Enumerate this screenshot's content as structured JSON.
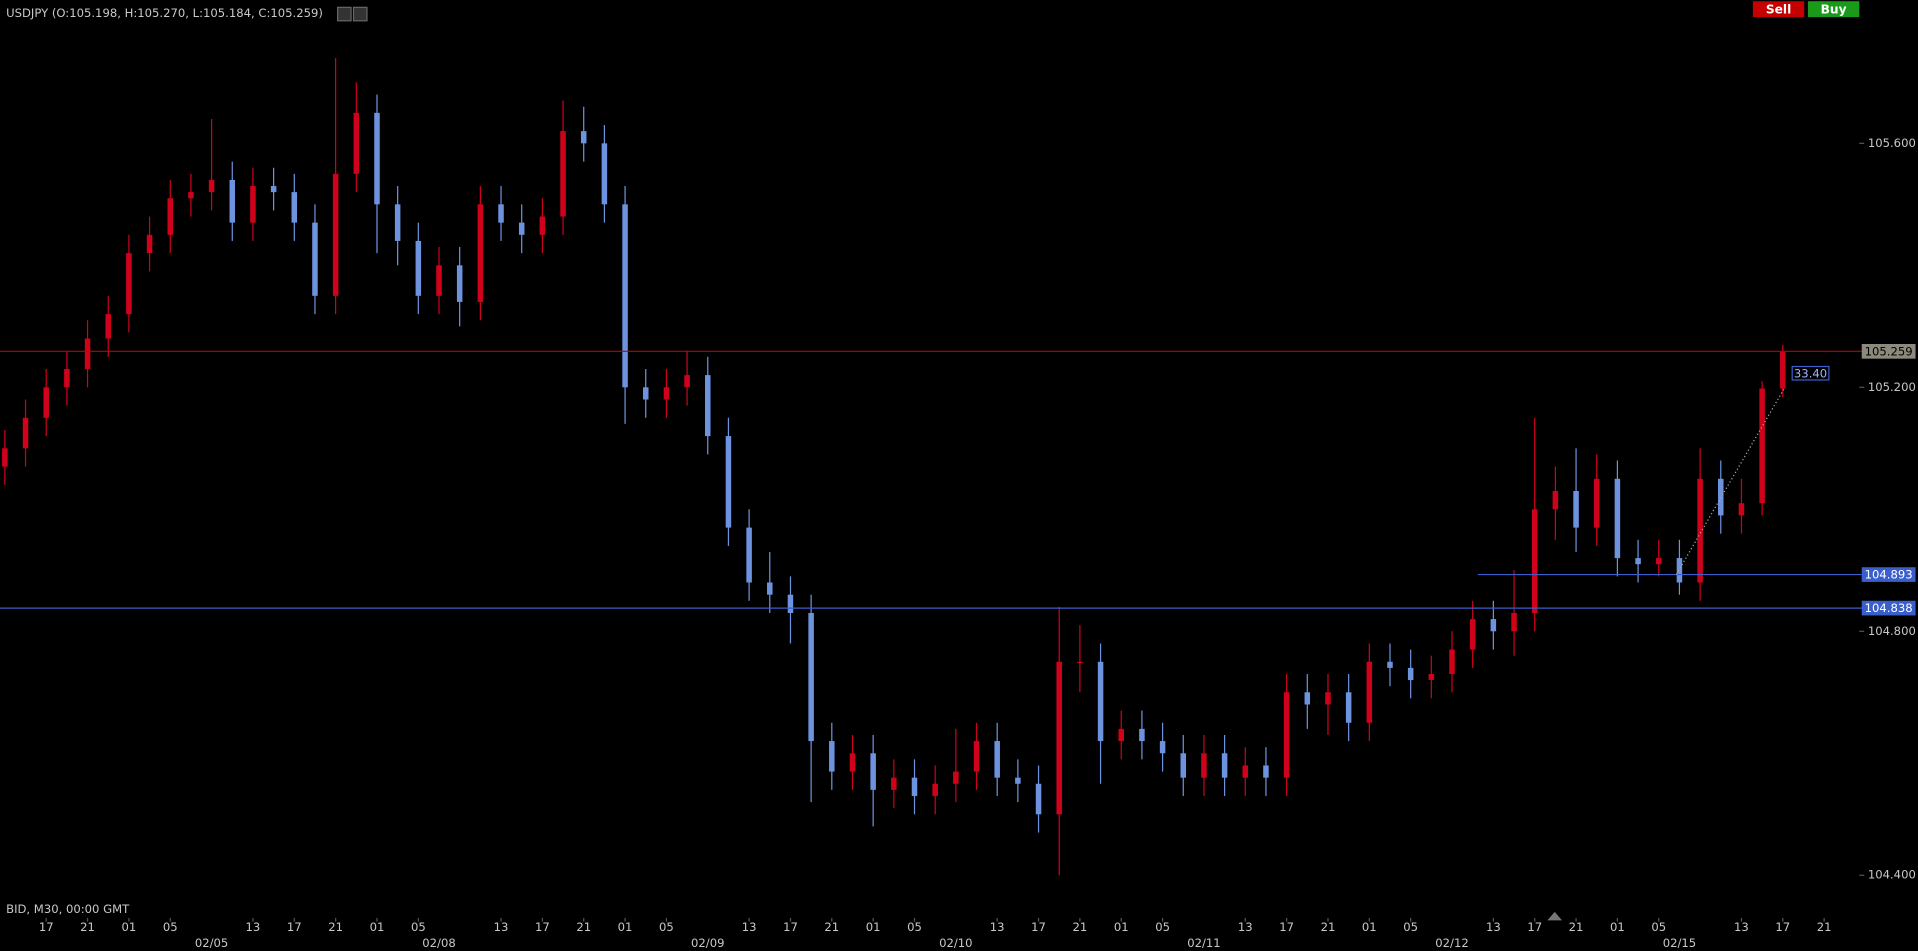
{
  "chart_data": {
    "type": "candlestick",
    "header": "USDJPY (O:105.198, H:105.270, L:105.184, C:105.259)",
    "footer_note": "BID, M30, 00:00 GMT",
    "buttons": [
      {
        "label": "Sell",
        "color": "#c40000"
      },
      {
        "label": "Buy",
        "color": "#1a9a1a"
      }
    ],
    "up_color": "#d0021b",
    "down_color": "#6d93df",
    "xlim": [
      -0.47,
      179.4
    ],
    "ylim": [
      104.33,
      105.835
    ],
    "yticks": [
      {
        "value": 104.4,
        "label": "104.400"
      },
      {
        "value": 104.8,
        "label": "104.800"
      },
      {
        "value": 105.2,
        "label": "105.200"
      },
      {
        "value": 105.6,
        "label": "105.600"
      }
    ],
    "xticks": [
      {
        "value": 4,
        "label": "17"
      },
      {
        "value": 8,
        "label": "21"
      },
      {
        "value": 12,
        "label": "01"
      },
      {
        "value": 16,
        "label": "05"
      },
      {
        "value": 24,
        "label": "13"
      },
      {
        "value": 28,
        "label": "17"
      },
      {
        "value": 32,
        "label": "21"
      },
      {
        "value": 36,
        "label": "01"
      },
      {
        "value": 40,
        "label": "05"
      },
      {
        "value": 48,
        "label": "13"
      },
      {
        "value": 52,
        "label": "17"
      },
      {
        "value": 56,
        "label": "21"
      },
      {
        "value": 60,
        "label": "01"
      },
      {
        "value": 64,
        "label": "05"
      },
      {
        "value": 72,
        "label": "13"
      },
      {
        "value": 76,
        "label": "17"
      },
      {
        "value": 80,
        "label": "21"
      },
      {
        "value": 84,
        "label": "01"
      },
      {
        "value": 88,
        "label": "05"
      },
      {
        "value": 96,
        "label": "13"
      },
      {
        "value": 100,
        "label": "17"
      },
      {
        "value": 104,
        "label": "21"
      },
      {
        "value": 108,
        "label": "01"
      },
      {
        "value": 112,
        "label": "05"
      },
      {
        "value": 120,
        "label": "13"
      },
      {
        "value": 124,
        "label": "17"
      },
      {
        "value": 128,
        "label": "21"
      },
      {
        "value": 132,
        "label": "01"
      },
      {
        "value": 136,
        "label": "05"
      },
      {
        "value": 144,
        "label": "13"
      },
      {
        "value": 148,
        "label": "17"
      },
      {
        "value": 152,
        "label": "21"
      },
      {
        "value": 156,
        "label": "01"
      },
      {
        "value": 160,
        "label": "05"
      },
      {
        "value": 168,
        "label": "13"
      },
      {
        "value": 172,
        "label": "17"
      },
      {
        "value": 176,
        "label": "21"
      }
    ],
    "date_ticks": [
      {
        "value": 20,
        "label": "02/05"
      },
      {
        "value": 42,
        "label": "02/08"
      },
      {
        "value": 68,
        "label": "02/09"
      },
      {
        "value": 92,
        "label": "02/10"
      },
      {
        "value": 116,
        "label": "02/11"
      },
      {
        "value": 140,
        "label": "02/12"
      },
      {
        "value": 162,
        "label": "02/15"
      }
    ],
    "price_lines": [
      {
        "value": 105.259,
        "label": "105.259",
        "color": "#c00000",
        "label_fill": "#8c8a7c",
        "label_color": "#000000"
      },
      {
        "value": 104.893,
        "label": "104.893",
        "color": "#3a5fcd",
        "label_fill": "#3a5fcd",
        "label_color": "#ffffff",
        "start": 142.5
      },
      {
        "value": 104.838,
        "label": "104.838",
        "color": "#3a5fcd",
        "label_fill": "#3a5fcd",
        "label_color": "#ffffff"
      }
    ],
    "measure": {
      "value": 33.4,
      "label": "33.40",
      "from": {
        "x": 161.7,
        "y": 104.893
      },
      "to": {
        "x": 172.2,
        "y": 105.2
      }
    },
    "candles": {
      "x": [
        0,
        2,
        4,
        6,
        8,
        10,
        12,
        14,
        16,
        18,
        20,
        22,
        24,
        26,
        28,
        30,
        32,
        34,
        36,
        38,
        40,
        42,
        44,
        46,
        48,
        50,
        52,
        54,
        56,
        58,
        60,
        62,
        64,
        66,
        68,
        70,
        72,
        74,
        76,
        78,
        80,
        82,
        84,
        86,
        88,
        90,
        92,
        94,
        96,
        98,
        100,
        102,
        104,
        106,
        108,
        110,
        112,
        114,
        116,
        118,
        120,
        122,
        124,
        126,
        128,
        130,
        132,
        134,
        136,
        138,
        140,
        142,
        144,
        146,
        148,
        150,
        152,
        154,
        156,
        158,
        160,
        162,
        164,
        166,
        168,
        170,
        172
      ],
      "open": [
        105.07,
        105.1,
        105.15,
        105.2,
        105.23,
        105.28,
        105.32,
        105.42,
        105.45,
        105.51,
        105.52,
        105.54,
        105.47,
        105.53,
        105.52,
        105.47,
        105.35,
        105.55,
        105.65,
        105.5,
        105.44,
        105.35,
        105.4,
        105.34,
        105.5,
        105.47,
        105.45,
        105.48,
        105.62,
        105.6,
        105.5,
        105.2,
        105.18,
        105.2,
        105.22,
        105.12,
        104.97,
        104.88,
        104.86,
        104.83,
        104.62,
        104.57,
        104.6,
        104.54,
        104.56,
        104.53,
        104.55,
        104.57,
        104.62,
        104.56,
        104.55,
        104.5,
        104.75,
        104.75,
        104.62,
        104.64,
        104.62,
        104.6,
        104.56,
        104.6,
        104.56,
        104.58,
        104.56,
        104.7,
        104.68,
        104.7,
        104.65,
        104.75,
        104.74,
        104.72,
        104.73,
        104.77,
        104.82,
        104.8,
        104.83,
        105.0,
        105.03,
        104.97,
        105.05,
        104.92,
        104.91,
        104.92,
        104.88,
        105.05,
        104.99,
        105.01,
        105.198
      ],
      "high": [
        105.13,
        105.18,
        105.23,
        105.26,
        105.31,
        105.35,
        105.45,
        105.48,
        105.54,
        105.55,
        105.64,
        105.57,
        105.56,
        105.56,
        105.55,
        105.5,
        105.74,
        105.7,
        105.68,
        105.53,
        105.47,
        105.43,
        105.43,
        105.53,
        105.53,
        105.5,
        105.51,
        105.67,
        105.66,
        105.63,
        105.53,
        105.23,
        105.23,
        105.26,
        105.25,
        105.15,
        105.0,
        104.93,
        104.89,
        104.86,
        104.65,
        104.63,
        104.63,
        104.59,
        104.59,
        104.58,
        104.64,
        104.65,
        104.65,
        104.59,
        104.58,
        104.84,
        104.81,
        104.78,
        104.67,
        104.67,
        104.65,
        104.63,
        104.63,
        104.63,
        104.61,
        104.61,
        104.73,
        104.73,
        104.73,
        104.73,
        104.78,
        104.78,
        104.77,
        104.76,
        104.8,
        104.85,
        104.85,
        104.9,
        105.15,
        105.07,
        105.1,
        105.09,
        105.08,
        104.95,
        104.95,
        104.95,
        105.1,
        105.08,
        105.05,
        105.21,
        105.27
      ],
      "low": [
        105.04,
        105.07,
        105.12,
        105.17,
        105.2,
        105.25,
        105.29,
        105.39,
        105.42,
        105.48,
        105.49,
        105.44,
        105.44,
        105.49,
        105.44,
        105.32,
        105.32,
        105.52,
        105.42,
        105.4,
        105.32,
        105.32,
        105.3,
        105.31,
        105.44,
        105.42,
        105.42,
        105.45,
        105.57,
        105.47,
        105.14,
        105.15,
        105.15,
        105.17,
        105.09,
        104.94,
        104.85,
        104.83,
        104.78,
        104.52,
        104.54,
        104.54,
        104.48,
        104.51,
        104.5,
        104.5,
        104.52,
        104.54,
        104.53,
        104.52,
        104.47,
        104.4,
        104.7,
        104.55,
        104.59,
        104.59,
        104.57,
        104.53,
        104.53,
        104.53,
        104.53,
        104.53,
        104.53,
        104.64,
        104.63,
        104.62,
        104.62,
        104.71,
        104.69,
        104.69,
        104.7,
        104.74,
        104.77,
        104.76,
        104.8,
        104.95,
        104.93,
        104.94,
        104.89,
        104.88,
        104.89,
        104.86,
        104.85,
        104.96,
        104.96,
        104.99,
        105.184
      ],
      "close": [
        105.1,
        105.15,
        105.2,
        105.23,
        105.28,
        105.32,
        105.42,
        105.45,
        105.51,
        105.52,
        105.54,
        105.47,
        105.53,
        105.52,
        105.47,
        105.35,
        105.55,
        105.65,
        105.5,
        105.44,
        105.35,
        105.4,
        105.34,
        105.5,
        105.47,
        105.45,
        105.48,
        105.62,
        105.6,
        105.5,
        105.2,
        105.18,
        105.2,
        105.22,
        105.12,
        104.97,
        104.88,
        104.86,
        104.83,
        104.62,
        104.57,
        104.6,
        104.54,
        104.56,
        104.53,
        104.55,
        104.57,
        104.62,
        104.56,
        104.55,
        104.5,
        104.75,
        104.75,
        104.62,
        104.64,
        104.62,
        104.6,
        104.56,
        104.6,
        104.56,
        104.58,
        104.56,
        104.7,
        104.68,
        104.7,
        104.65,
        104.75,
        104.74,
        104.72,
        104.73,
        104.77,
        104.82,
        104.8,
        104.83,
        105.0,
        105.03,
        104.97,
        105.05,
        104.92,
        104.91,
        104.92,
        104.88,
        105.05,
        104.99,
        105.01,
        105.198,
        105.259
      ]
    }
  }
}
